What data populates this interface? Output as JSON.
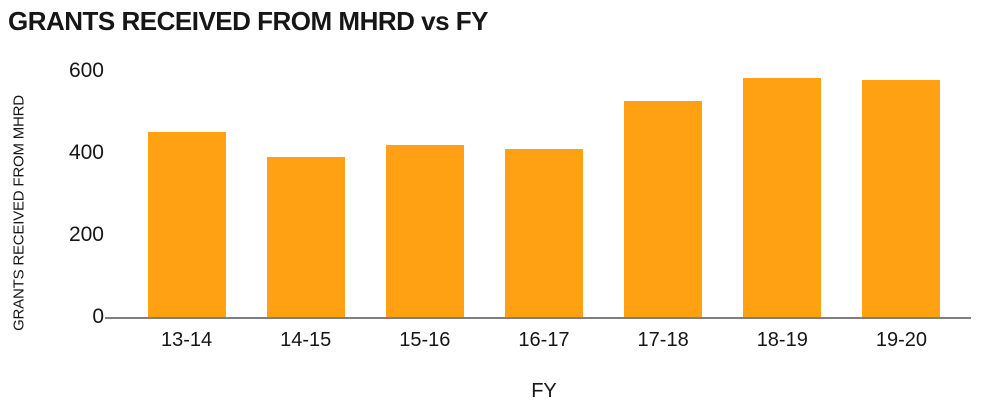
{
  "chart_data": {
    "type": "bar",
    "title": "GRANTS RECEIVED FROM MHRD vs FY",
    "xlabel": "FY",
    "ylabel": "GRANTS RECEIVED FROM MHRD",
    "categories": [
      "13-14",
      "14-15",
      "15-16",
      "16-17",
      "17-18",
      "18-19",
      "19-20"
    ],
    "values": [
      450,
      391,
      419,
      409,
      528,
      584,
      578
    ],
    "ylim": [
      0,
      600
    ],
    "yticks": [
      0,
      200,
      400,
      600
    ],
    "grid": false,
    "legend": false,
    "colors": {
      "bar": "#ffa113",
      "axis_line": "#7f7f7f",
      "text": "#161616",
      "background": "#ffffff"
    }
  }
}
